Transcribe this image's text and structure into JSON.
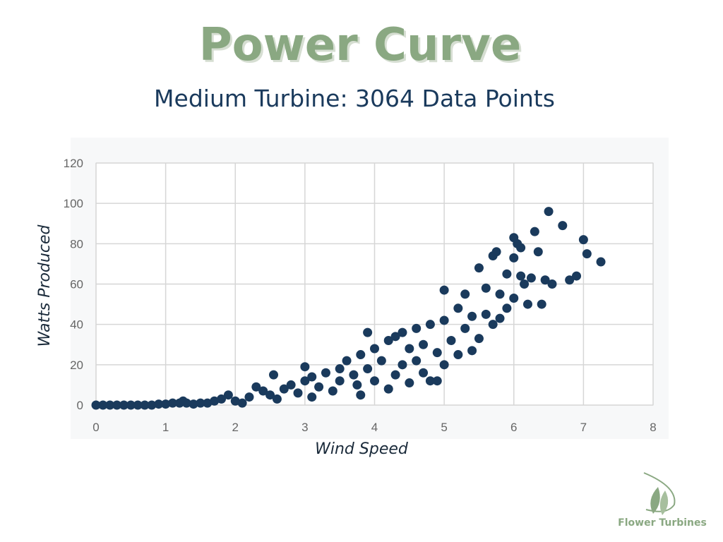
{
  "chart_data": {
    "type": "scatter",
    "title": "Power Curve",
    "subtitle": "Medium Turbine: 3064 Data Points",
    "x_label": "Wind Speed",
    "y_label": "Watts Produced",
    "color": "#1a3a5c",
    "grid": true,
    "xlim": [
      0,
      8
    ],
    "xticks": [
      0,
      1,
      2,
      3,
      4,
      5,
      6,
      7,
      8
    ],
    "ylim": [
      0,
      120
    ],
    "yticks": [
      0,
      20,
      40,
      60,
      80,
      100,
      120
    ],
    "x": [
      0,
      0.1,
      0.2,
      0.3,
      0.4,
      0.5,
      0.6,
      0.7,
      0.8,
      0.9,
      1,
      1.1,
      1.2,
      1.25,
      1.3,
      1.4,
      1.5,
      1.6,
      1.7,
      1.8,
      1.9,
      2,
      2.1,
      2.2,
      2.3,
      2.4,
      2.5,
      2.55,
      2.6,
      2.7,
      2.8,
      2.9,
      3,
      3,
      3.1,
      3.1,
      3.2,
      3.3,
      3.4,
      3.5,
      3.5,
      3.6,
      3.7,
      3.75,
      3.8,
      3.8,
      3.9,
      3.9,
      4,
      4,
      4.1,
      4.2,
      4.2,
      4.3,
      4.3,
      4.4,
      4.4,
      4.5,
      4.5,
      4.6,
      4.6,
      4.7,
      4.7,
      4.8,
      4.8,
      4.9,
      4.9,
      5,
      5,
      5,
      5.1,
      5.2,
      5.2,
      5.3,
      5.3,
      5.4,
      5.4,
      5.5,
      5.5,
      5.6,
      5.6,
      5.7,
      5.7,
      5.75,
      5.8,
      5.8,
      5.9,
      5.9,
      6,
      6,
      6,
      6.05,
      6.1,
      6.1,
      6.15,
      6.2,
      6.25,
      6.3,
      6.35,
      6.4,
      6.45,
      6.5,
      6.55,
      6.7,
      6.8,
      6.9,
      7,
      7.05,
      7.25
    ],
    "values": [
      0,
      0,
      0,
      0,
      0,
      0,
      0,
      0,
      0,
      0.5,
      0.5,
      1,
      1,
      2,
      1,
      0.5,
      1,
      1,
      2,
      3,
      5,
      2,
      1,
      4,
      9,
      7,
      5,
      15,
      3,
      8,
      10,
      6,
      19,
      12,
      4,
      14,
      9,
      16,
      7,
      18,
      12,
      22,
      15,
      10,
      25,
      5,
      36,
      18,
      28,
      12,
      22,
      32,
      8,
      34,
      15,
      20,
      36,
      11,
      28,
      38,
      22,
      30,
      16,
      40,
      12,
      26,
      12,
      57,
      20,
      42,
      32,
      48,
      25,
      55,
      38,
      44,
      27,
      68,
      33,
      58,
      45,
      74,
      40,
      76,
      55,
      43,
      65,
      48,
      83,
      53,
      73,
      80,
      78,
      64,
      60,
      50,
      63,
      86,
      76,
      50,
      62,
      96,
      60,
      89,
      62,
      64,
      82,
      75,
      71
    ]
  },
  "brand": "Flower Turbines"
}
